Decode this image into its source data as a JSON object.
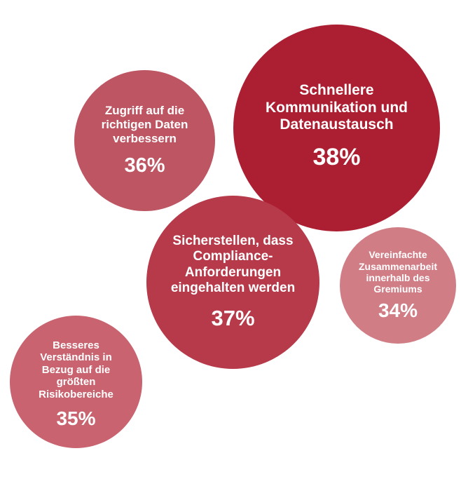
{
  "chart_data": {
    "type": "bubble",
    "title": "",
    "series": [],
    "bubbles": [
      {
        "label": "Zugriff auf die\nrichtigen Daten\nverbessern",
        "value": 36,
        "value_label": "36%",
        "color": "#bd5562"
      },
      {
        "label": "Schnellere\nKommunikation und\nDatenaustausch",
        "value": 38,
        "value_label": "38%",
        "color": "#ac1f32"
      },
      {
        "label": "Sicherstellen, dass\nCompliance-\nAnforderungen\neingehalten werden",
        "value": 37,
        "value_label": "37%",
        "color": "#b63a4a"
      },
      {
        "label": "Vereinfachte\nZusammenarbeit\ninnerhalb des\nGremiums",
        "value": 34,
        "value_label": "34%",
        "color": "#d07d86"
      },
      {
        "label": "Besseres\nVerständnis in\nBezug auf die\ngrößten\nRisikobereiche",
        "value": 35,
        "value_label": "35%",
        "color": "#c8636f"
      }
    ]
  }
}
